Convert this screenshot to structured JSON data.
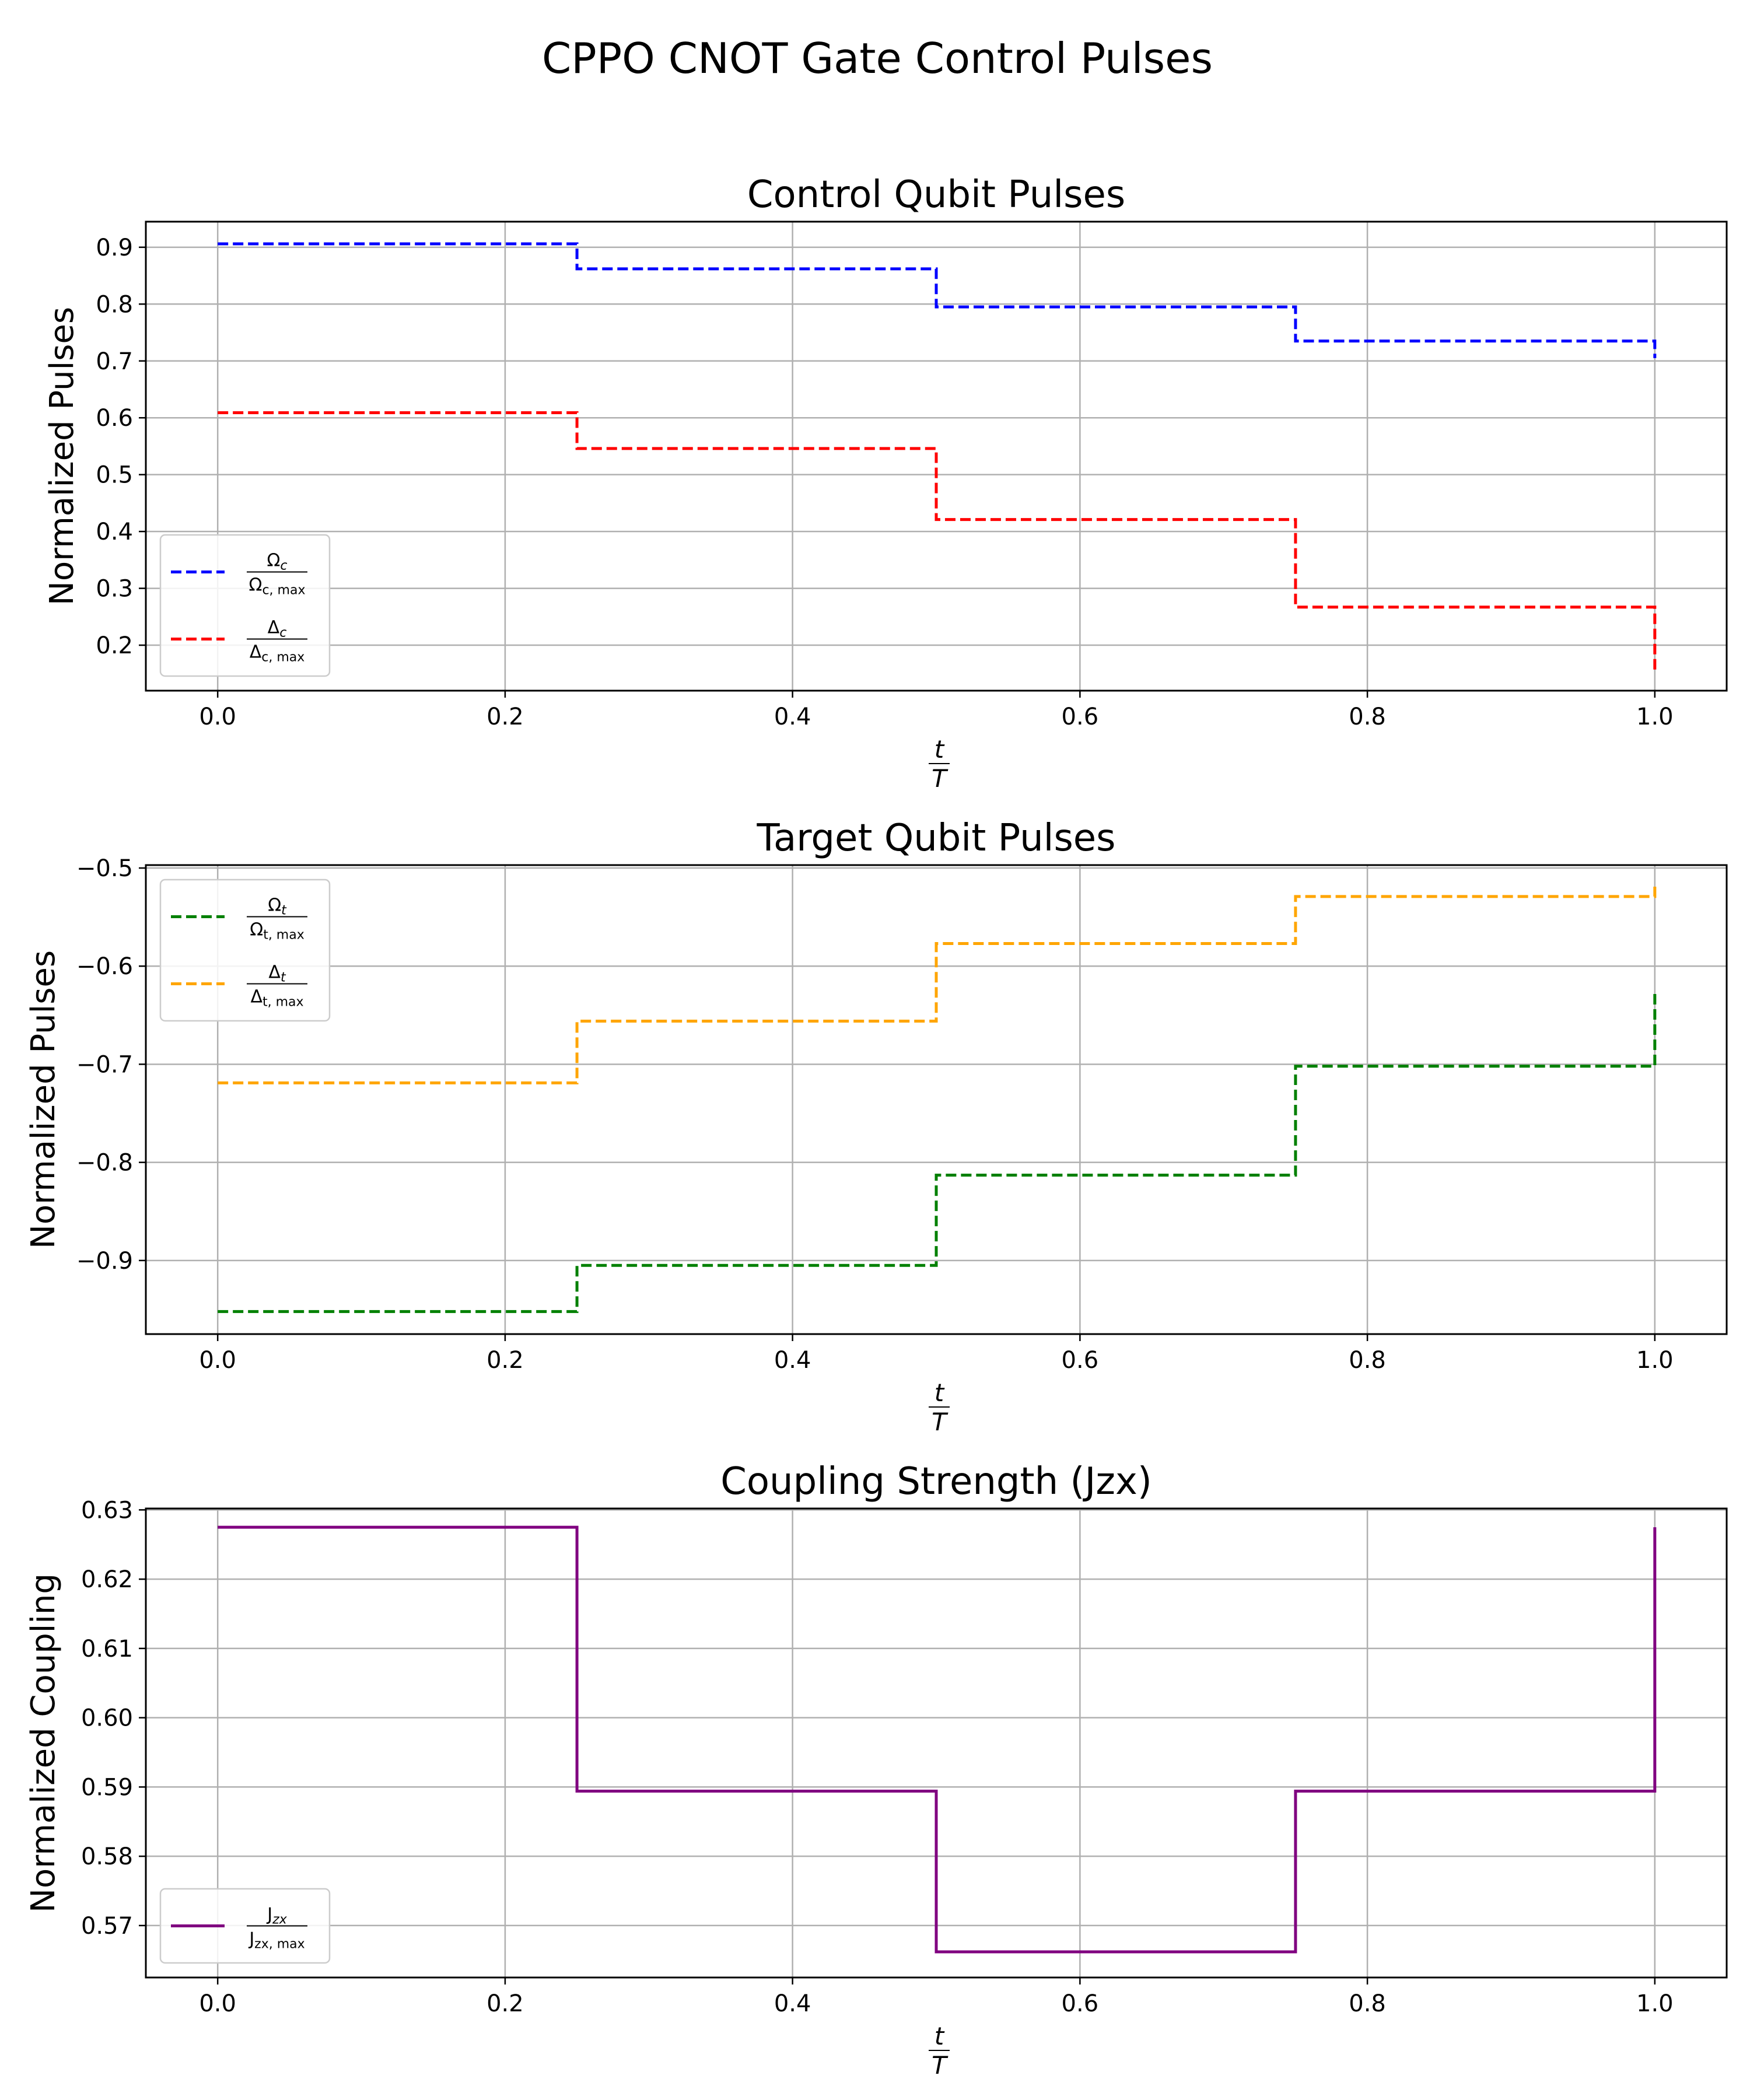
{
  "figure": {
    "suptitle": "CPPO CNOT Gate Control Pulses"
  },
  "chart_data": [
    {
      "type": "line",
      "step": "post",
      "title": "Control Qubit Pulses",
      "ylabel": "Normalized Pulses",
      "xlabel": {
        "num": "t",
        "den": "T"
      },
      "xlim": [
        -0.05,
        1.05
      ],
      "ylim": [
        0.12,
        0.945
      ],
      "xticks": [
        0.0,
        0.2,
        0.4,
        0.6,
        0.8,
        1.0
      ],
      "xtick_labels": [
        "0.0",
        "0.2",
        "0.4",
        "0.6",
        "0.8",
        "1.0"
      ],
      "yticks": [
        0.2,
        0.3,
        0.4,
        0.5,
        0.6,
        0.7,
        0.8,
        0.9
      ],
      "ytick_labels": [
        "0.2",
        "0.3",
        "0.4",
        "0.5",
        "0.6",
        "0.7",
        "0.8",
        "0.9"
      ],
      "grid": true,
      "legend_loc": "lower left",
      "series": [
        {
          "label": {
            "num": "Ω",
            "num_sub": "c",
            "den": "Ω",
            "den_sub": "c, max"
          },
          "color": "#0000ff",
          "dash": true,
          "x": [
            0.0,
            0.25,
            0.5,
            0.75,
            1.0
          ],
          "y": [
            0.906,
            0.862,
            0.795,
            0.735,
            0.705
          ]
        },
        {
          "label": {
            "num": "Δ",
            "num_sub": "c",
            "den": "Δ",
            "den_sub": "c, max"
          },
          "color": "#ff0000",
          "dash": true,
          "x": [
            0.0,
            0.25,
            0.5,
            0.75,
            1.0
          ],
          "y": [
            0.609,
            0.546,
            0.421,
            0.267,
            0.155
          ]
        }
      ]
    },
    {
      "type": "line",
      "step": "post",
      "title": "Target Qubit Pulses",
      "ylabel": "Normalized Pulses",
      "xlabel": {
        "num": "t",
        "den": "T"
      },
      "xlim": [
        -0.05,
        1.05
      ],
      "ylim": [
        -0.975,
        -0.497
      ],
      "xticks": [
        0.0,
        0.2,
        0.4,
        0.6,
        0.8,
        1.0
      ],
      "xtick_labels": [
        "0.0",
        "0.2",
        "0.4",
        "0.6",
        "0.8",
        "1.0"
      ],
      "yticks": [
        -0.9,
        -0.8,
        -0.7,
        -0.6,
        -0.5
      ],
      "ytick_labels": [
        "−0.9",
        "−0.8",
        "−0.7",
        "−0.6",
        "−0.5"
      ],
      "grid": true,
      "legend_loc": "upper left",
      "series": [
        {
          "label": {
            "num": "Ω",
            "num_sub": "t",
            "den": "Ω",
            "den_sub": "t, max"
          },
          "color": "#008000",
          "dash": true,
          "x": [
            0.0,
            0.25,
            0.5,
            0.75,
            1.0
          ],
          "y": [
            -0.952,
            -0.905,
            -0.813,
            -0.702,
            -0.628
          ]
        },
        {
          "label": {
            "num": "Δ",
            "num_sub": "t",
            "den": "Δ",
            "den_sub": "t, max"
          },
          "color": "#ffa500",
          "dash": true,
          "x": [
            0.0,
            0.25,
            0.5,
            0.75,
            1.0
          ],
          "y": [
            -0.719,
            -0.656,
            -0.577,
            -0.529,
            -0.517
          ]
        }
      ]
    },
    {
      "type": "line",
      "step": "post",
      "title": "Coupling Strength (Jzx)",
      "ylabel": "Normalized Coupling",
      "xlabel": {
        "num": "t",
        "den": "T"
      },
      "xlim": [
        -0.05,
        1.05
      ],
      "ylim": [
        0.5625,
        0.6302
      ],
      "xticks": [
        0.0,
        0.2,
        0.4,
        0.6,
        0.8,
        1.0
      ],
      "xtick_labels": [
        "0.0",
        "0.2",
        "0.4",
        "0.6",
        "0.8",
        "1.0"
      ],
      "yticks": [
        0.57,
        0.58,
        0.59,
        0.6,
        0.61,
        0.62,
        0.63
      ],
      "ytick_labels": [
        "0.57",
        "0.58",
        "0.59",
        "0.60",
        "0.61",
        "0.62",
        "0.63"
      ],
      "grid": true,
      "legend_loc": "lower left",
      "series": [
        {
          "label": {
            "num": "J",
            "num_sub": "zx",
            "den": "J",
            "den_sub": "zx, max"
          },
          "color": "#800080",
          "dash": false,
          "x": [
            0.0,
            0.25,
            0.5,
            0.75,
            1.0
          ],
          "y": [
            0.6275,
            0.5894,
            0.5662,
            0.5894,
            0.6275
          ]
        }
      ]
    }
  ]
}
